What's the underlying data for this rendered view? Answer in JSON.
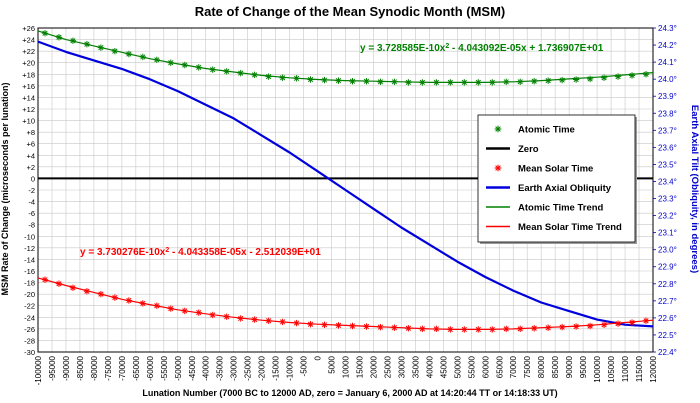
{
  "chart_data": {
    "type": "line",
    "title": "Rate of Change of the Mean Synodic Month (MSM)",
    "xlabel": "Lunation Number (7000 BC to 12000 AD, zero = January 6, 2000 AD at 14:20:44 TT or 14:18:33 UT)",
    "ylabel": "MSM Rate of Change (microseconds per lunation)",
    "ylabel_right": "Earth Axial Tilt (Obliquity, in degrees)",
    "xlim": [
      -100000,
      120000
    ],
    "ylim": [
      -30,
      26
    ],
    "ylim_right": [
      22.4,
      24.3
    ],
    "x_ticks": [
      "-100000",
      "-95000",
      "-90000",
      "-85000",
      "-80000",
      "-75000",
      "-70000",
      "-65000",
      "-60000",
      "-55000",
      "-50000",
      "-45000",
      "-40000",
      "-35000",
      "-30000",
      "-25000",
      "-20000",
      "-15000",
      "-10000",
      "-5000",
      "0",
      "5000",
      "10000",
      "15000",
      "20000",
      "25000",
      "30000",
      "35000",
      "40000",
      "45000",
      "50000",
      "55000",
      "60000",
      "65000",
      "70000",
      "75000",
      "80000",
      "85000",
      "90000",
      "95000",
      "100000",
      "105000",
      "110000",
      "115000",
      "120000"
    ],
    "y_ticks": [
      "+26",
      "+24",
      "+22",
      "+20",
      "+18",
      "+16",
      "+14",
      "+12",
      "+10",
      "+8",
      "+6",
      "+4",
      "+2",
      "0",
      "-2",
      "-4",
      "-6",
      "-8",
      "-10",
      "-12",
      "-14",
      "-16",
      "-18",
      "-20",
      "-22",
      "-24",
      "-26",
      "-28",
      "-30"
    ],
    "y_ticks_right": [
      "24.3°",
      "24.2°",
      "24.1°",
      "24.0°",
      "23.9°",
      "23.8°",
      "23.7°",
      "23.6°",
      "23.5°",
      "23.4°",
      "23.3°",
      "23.2°",
      "23.1°",
      "23.0°",
      "22.9°",
      "22.8°",
      "22.7°",
      "22.6°",
      "22.5°",
      "22.4°"
    ],
    "grid": true,
    "legend_position": "center-right",
    "series": [
      {
        "name": "Atomic Time",
        "style": "markers",
        "color": "#008000",
        "x": [
          -97500,
          -92500,
          -87500,
          -82500,
          -77500,
          -72500,
          -67500,
          -62500,
          -57500,
          -52500,
          -47500,
          -42500,
          -37500,
          -32500,
          -27500,
          -22500,
          -17500,
          -12500,
          -7500,
          -2500,
          2500,
          7500,
          12500,
          17500,
          22500,
          27500,
          32500,
          37500,
          42500,
          47500,
          52500,
          57500,
          62500,
          67500,
          72500,
          77500,
          82500,
          87500,
          92500,
          97500,
          102500,
          107500,
          112500,
          117500
        ],
        "values": [
          25.1,
          24.4,
          23.8,
          23.2,
          22.6,
          22.0,
          21.5,
          21.0,
          20.5,
          20.0,
          19.6,
          19.2,
          18.8,
          18.5,
          18.2,
          17.9,
          17.6,
          17.4,
          17.3,
          17.1,
          17.0,
          16.9,
          16.8,
          16.8,
          16.7,
          16.7,
          16.6,
          16.6,
          16.6,
          16.6,
          16.6,
          16.6,
          16.6,
          16.7,
          16.7,
          16.8,
          16.9,
          17.0,
          17.1,
          17.2,
          17.4,
          17.6,
          17.8,
          18.0
        ]
      },
      {
        "name": "Zero",
        "style": "line",
        "color": "#000000",
        "x": [
          -100000,
          120000
        ],
        "values": [
          0,
          0
        ]
      },
      {
        "name": "Mean Solar Time",
        "style": "markers",
        "color": "#ff0000",
        "x": [
          -97500,
          -92500,
          -87500,
          -82500,
          -77500,
          -72500,
          -67500,
          -62500,
          -57500,
          -52500,
          -47500,
          -42500,
          -37500,
          -32500,
          -27500,
          -22500,
          -17500,
          -12500,
          -7500,
          -2500,
          2500,
          7500,
          12500,
          17500,
          22500,
          27500,
          32500,
          37500,
          42500,
          47500,
          52500,
          57500,
          62500,
          67500,
          72500,
          77500,
          82500,
          87500,
          92500,
          97500,
          102500,
          107500,
          112500,
          117500
        ],
        "values": [
          -17.5,
          -18.2,
          -18.9,
          -19.5,
          -20.0,
          -20.6,
          -21.1,
          -21.6,
          -22.0,
          -22.5,
          -22.9,
          -23.2,
          -23.6,
          -23.9,
          -24.2,
          -24.4,
          -24.6,
          -24.8,
          -25.0,
          -25.2,
          -25.3,
          -25.4,
          -25.5,
          -25.6,
          -25.7,
          -25.8,
          -25.9,
          -26.0,
          -26.0,
          -26.1,
          -26.1,
          -26.1,
          -26.1,
          -26.0,
          -26.0,
          -25.9,
          -25.8,
          -25.7,
          -25.6,
          -25.5,
          -25.3,
          -25.1,
          -24.9,
          -24.6
        ]
      },
      {
        "name": "Earth Axial Obliquity",
        "style": "line",
        "color": "#0000dd",
        "axis": "right",
        "x": [
          -100000,
          -90000,
          -80000,
          -70000,
          -60000,
          -50000,
          -40000,
          -30000,
          -20000,
          -10000,
          0,
          10000,
          20000,
          30000,
          40000,
          50000,
          60000,
          70000,
          80000,
          90000,
          100000,
          110000,
          120000
        ],
        "values": [
          24.22,
          24.16,
          24.11,
          24.06,
          24.0,
          23.93,
          23.85,
          23.77,
          23.67,
          23.57,
          23.46,
          23.35,
          23.24,
          23.13,
          23.03,
          22.93,
          22.84,
          22.76,
          22.69,
          22.64,
          22.59,
          22.56,
          22.55
        ]
      },
      {
        "name": "Atomic Time Trend",
        "style": "line",
        "color": "#008000",
        "x": [
          -100000,
          -90000,
          -80000,
          -70000,
          -60000,
          -50000,
          -40000,
          -30000,
          -20000,
          -10000,
          0,
          10000,
          20000,
          30000,
          40000,
          50000,
          60000,
          70000,
          80000,
          90000,
          100000,
          110000,
          120000
        ],
        "values": [
          25.5,
          24.0,
          22.9,
          21.8,
          20.7,
          19.8,
          19.0,
          18.4,
          17.8,
          17.4,
          17.1,
          16.9,
          16.8,
          16.7,
          16.6,
          16.6,
          16.6,
          16.7,
          16.9,
          17.2,
          17.5,
          17.9,
          18.3
        ]
      },
      {
        "name": "Mean Solar Time Trend",
        "style": "line",
        "color": "#ff0000",
        "x": [
          -100000,
          -90000,
          -80000,
          -70000,
          -60000,
          -50000,
          -40000,
          -30000,
          -20000,
          -10000,
          0,
          10000,
          20000,
          30000,
          40000,
          50000,
          60000,
          70000,
          80000,
          90000,
          100000,
          110000,
          120000
        ],
        "values": [
          -17.2,
          -18.5,
          -19.7,
          -20.9,
          -21.8,
          -22.7,
          -23.4,
          -24.0,
          -24.5,
          -24.9,
          -25.2,
          -25.4,
          -25.6,
          -25.8,
          -26.0,
          -26.1,
          -26.1,
          -26.0,
          -25.8,
          -25.6,
          -25.3,
          -24.9,
          -24.5
        ]
      }
    ],
    "annotations": [
      {
        "id": "eq-atomic",
        "color": "#008000",
        "parts": [
          "y = 3.728585E-10x",
          "2",
          " - 4.043092E-05x + 1.736907E+01"
        ]
      },
      {
        "id": "eq-solar",
        "color": "#ff0000",
        "parts": [
          "y = 3.730276E-10x",
          "2",
          " - 4.043358E-05x - 2.512039E+01"
        ]
      }
    ]
  }
}
